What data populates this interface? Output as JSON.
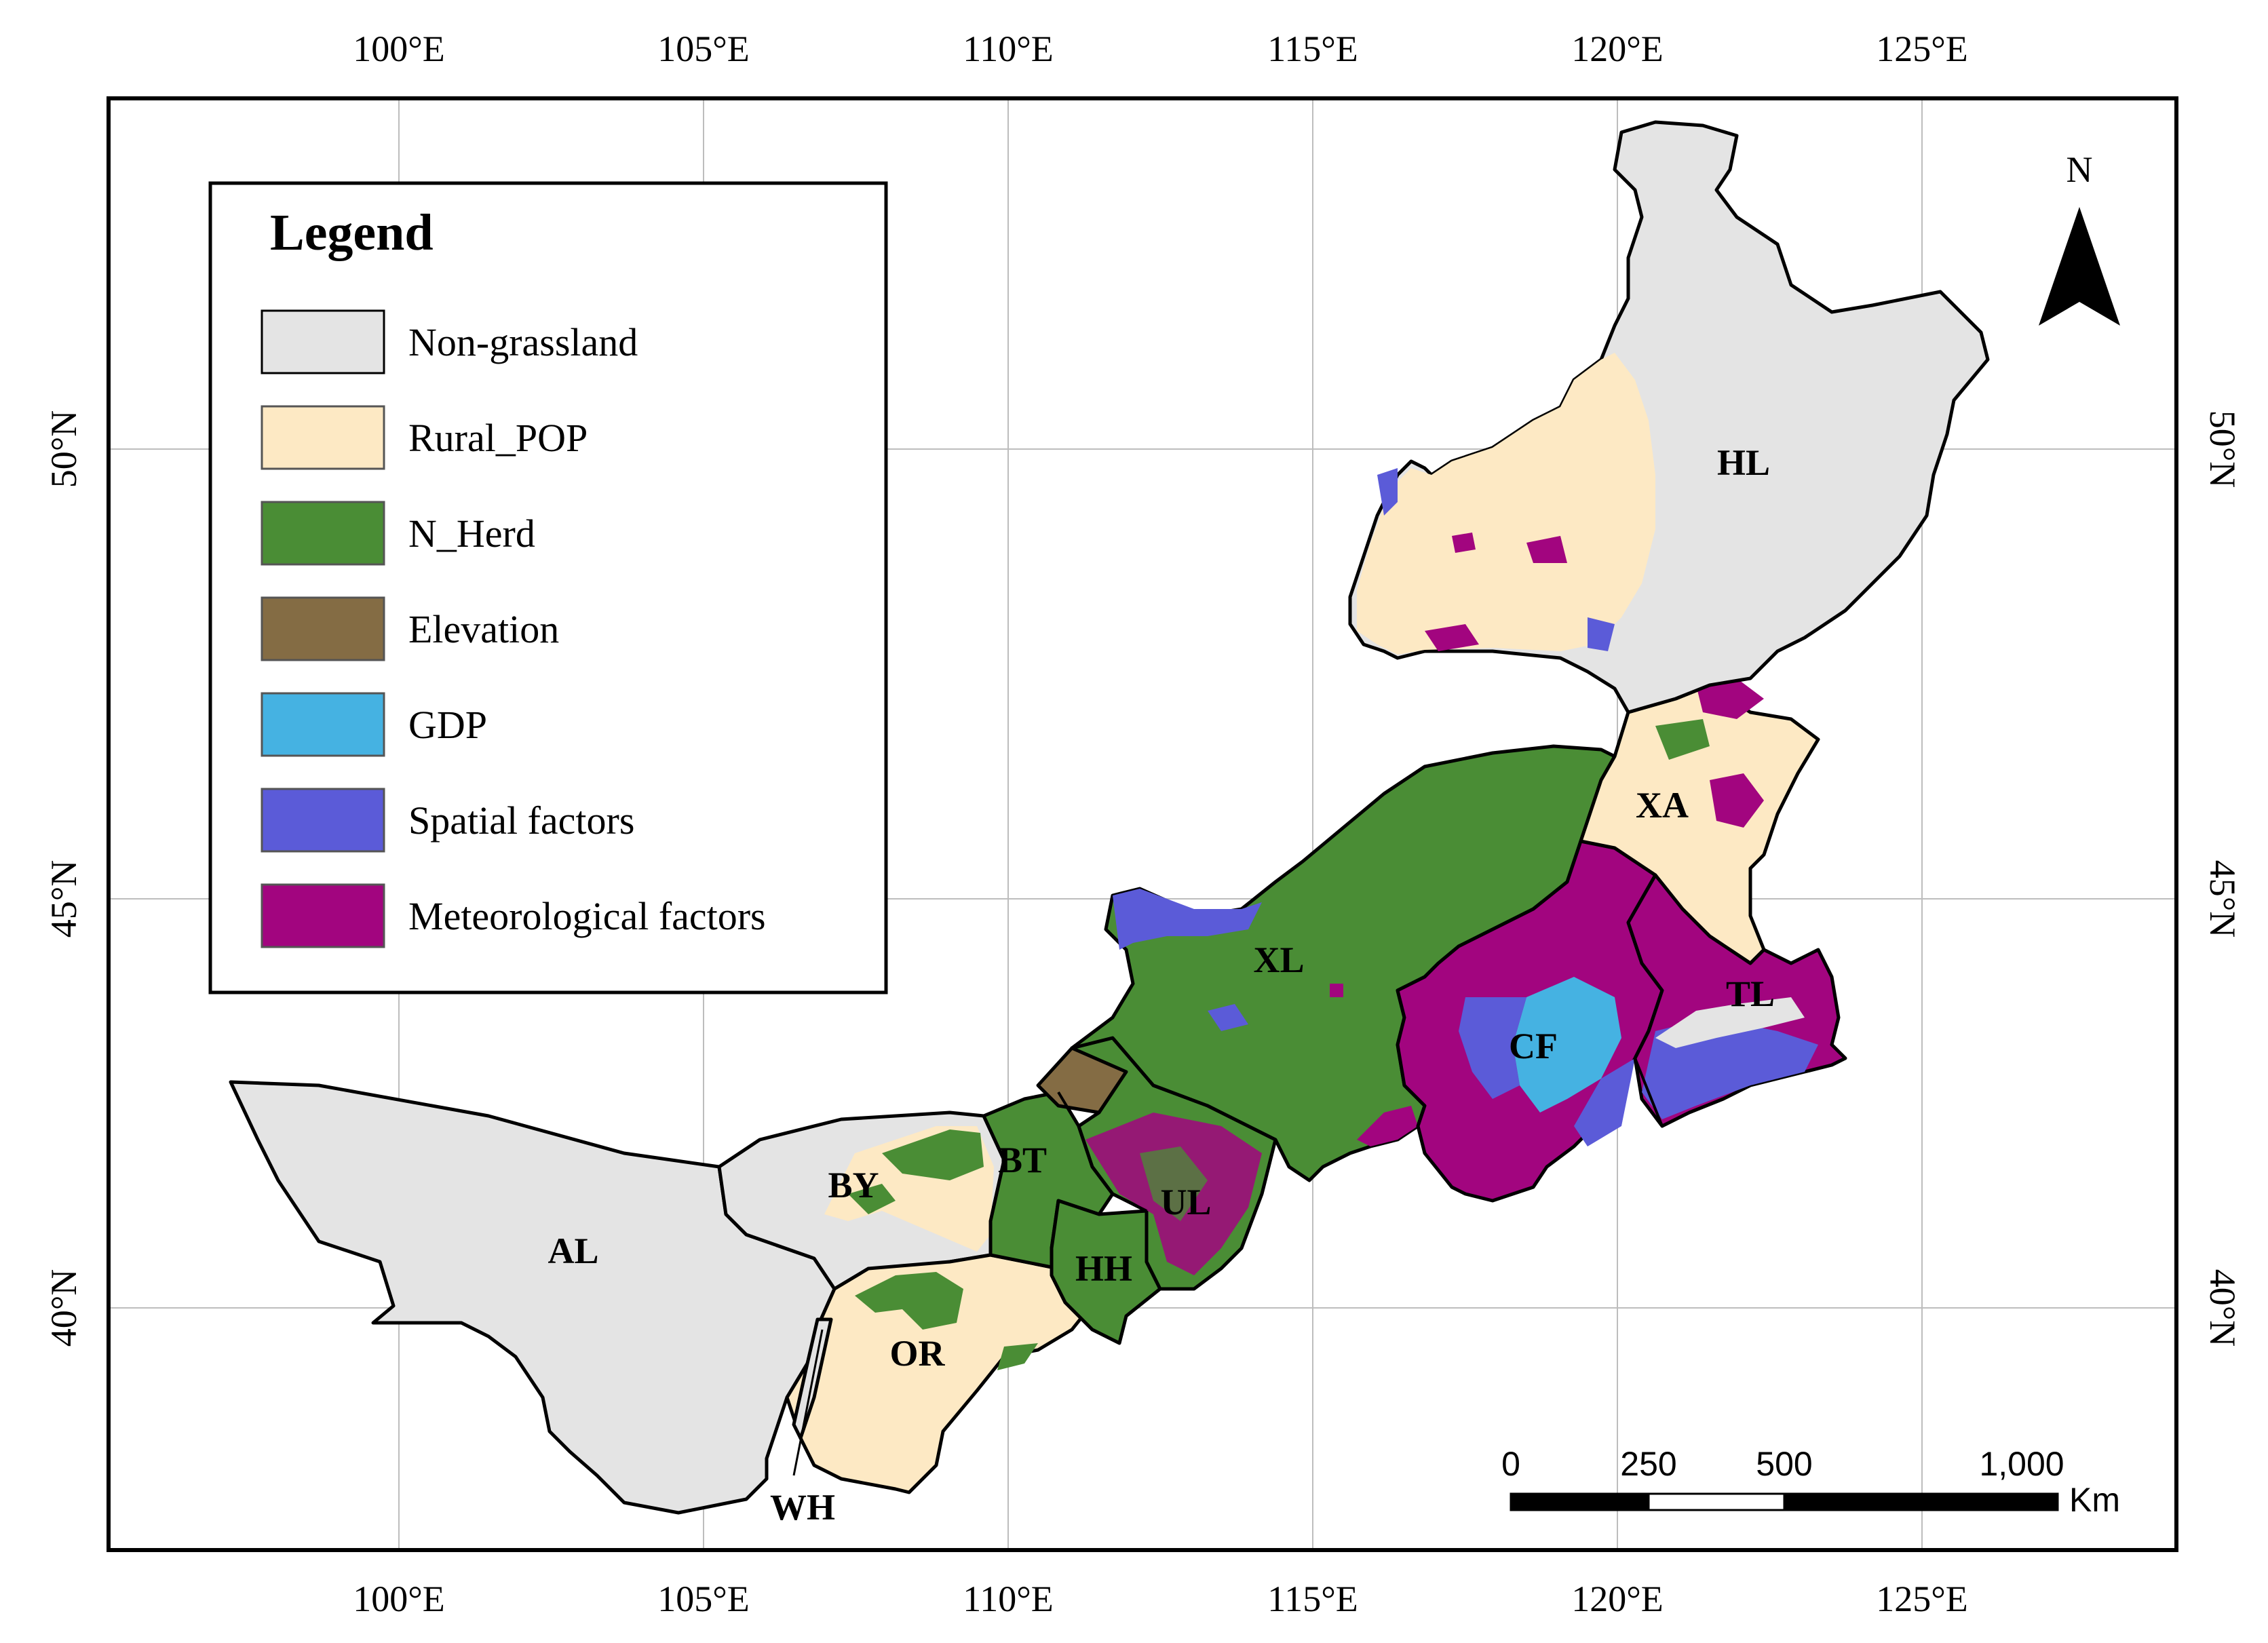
{
  "map": {
    "lon_ticks": [
      "100°E",
      "105°E",
      "110°E",
      "115°E",
      "120°E",
      "125°E"
    ],
    "lat_ticks": [
      "50°N",
      "45°N",
      "40°N"
    ],
    "regions": [
      {
        "code": "HL"
      },
      {
        "code": "XA"
      },
      {
        "code": "TL"
      },
      {
        "code": "CF"
      },
      {
        "code": "XL"
      },
      {
        "code": "UL"
      },
      {
        "code": "BT"
      },
      {
        "code": "HH"
      },
      {
        "code": "BY"
      },
      {
        "code": "AL"
      },
      {
        "code": "OR"
      },
      {
        "code": "WH"
      }
    ],
    "north_arrow": {
      "label": "N",
      "icon": "north-arrow-icon"
    },
    "scale_bar": {
      "labels": [
        "0",
        "250",
        "500",
        "1,000"
      ],
      "unit": "Km"
    }
  },
  "legend": {
    "title": "Legend",
    "items": [
      {
        "label": "Non-grassland",
        "color": "#e4e4e4"
      },
      {
        "label": "Rural_POP",
        "color": "#fde9c4"
      },
      {
        "label": "N_Herd",
        "color": "#4a8d35"
      },
      {
        "label": "Elevation",
        "color": "#846c44"
      },
      {
        "label": "GDP",
        "color": "#45b2e2"
      },
      {
        "label": "Spatial factors",
        "color": "#5b5bd8"
      },
      {
        "label": "Meteorological factors",
        "color": "#a2057f"
      }
    ]
  }
}
